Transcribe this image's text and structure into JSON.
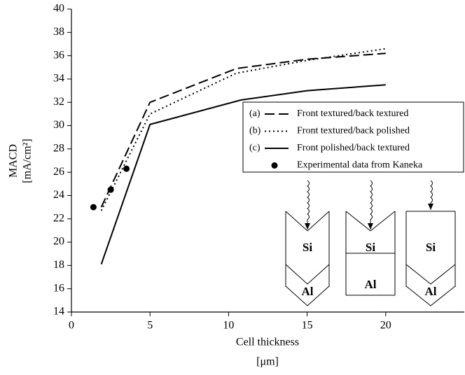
{
  "chart_data": {
    "type": "line",
    "ylabel": [
      "MACD",
      "[mA/cm²]"
    ],
    "xlabel": [
      "Cell thickness",
      "[μm]"
    ],
    "xlim": [
      0,
      25
    ],
    "xticks": [
      0,
      5,
      10,
      15,
      20
    ],
    "ylim": [
      14,
      40
    ],
    "yticks": [
      14,
      16,
      18,
      20,
      22,
      24,
      26,
      28,
      30,
      32,
      34,
      36,
      38,
      40
    ],
    "series": [
      {
        "letter": "(a)",
        "name": "Front textured/back textured",
        "color": "#000000",
        "style": "dashed",
        "x": [
          1.9,
          5,
          10.5,
          15,
          20
        ],
        "values": [
          23,
          32,
          34.9,
          35.7,
          36.2
        ]
      },
      {
        "letter": "(b)",
        "name": "Front textured/back polished",
        "color": "#000000",
        "style": "dotted",
        "x": [
          1.9,
          5,
          10.5,
          15,
          20
        ],
        "values": [
          22.7,
          31,
          34.5,
          35.6,
          36.6
        ]
      },
      {
        "letter": "(c)",
        "name": "Front polished/back textured",
        "color": "#000000",
        "style": "solid",
        "x": [
          1.9,
          5,
          10.8,
          15,
          20
        ],
        "values": [
          18.1,
          30.1,
          32.2,
          33,
          33.5
        ]
      },
      {
        "name": "Experimental data from Kaneka",
        "color": "#000000",
        "style": "points",
        "x": [
          1.4,
          2.5,
          3.5
        ],
        "values": [
          23,
          24.5,
          26.3
        ]
      }
    ]
  },
  "inset": {
    "cells": [
      {
        "top": "Si",
        "bottom": "Al"
      },
      {
        "top": "Si",
        "bottom": "Al"
      },
      {
        "top": "Si",
        "bottom": "Al"
      }
    ]
  }
}
